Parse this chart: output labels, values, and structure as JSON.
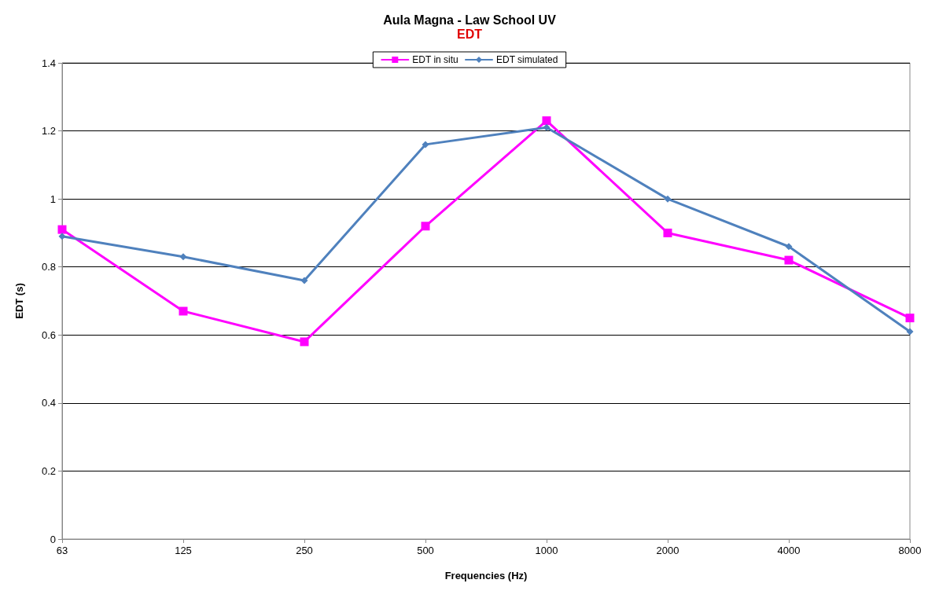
{
  "chart_data": {
    "type": "line",
    "title": "Aula Magna - Law School UV",
    "subtitle": "EDT",
    "xlabel": "Frequencies (Hz)",
    "ylabel": "EDT (s)",
    "categories": [
      "63",
      "125",
      "250",
      "500",
      "1000",
      "2000",
      "4000",
      "8000"
    ],
    "series": [
      {
        "name": "EDT in situ",
        "color": "#ff00ff",
        "marker": "square",
        "values": [
          0.91,
          0.67,
          0.58,
          0.92,
          1.23,
          0.9,
          0.82,
          0.65
        ]
      },
      {
        "name": "EDT simulated",
        "color": "#4f81bd",
        "marker": "diamond",
        "values": [
          0.89,
          0.83,
          0.76,
          1.16,
          1.21,
          1.0,
          0.86,
          0.61
        ]
      }
    ],
    "ylim": [
      0,
      1.4
    ],
    "yticks": [
      0,
      0.2,
      0.4,
      0.6,
      0.8,
      1,
      1.2,
      1.4
    ],
    "grid": "y",
    "legend": "top",
    "line_style": "solid"
  }
}
